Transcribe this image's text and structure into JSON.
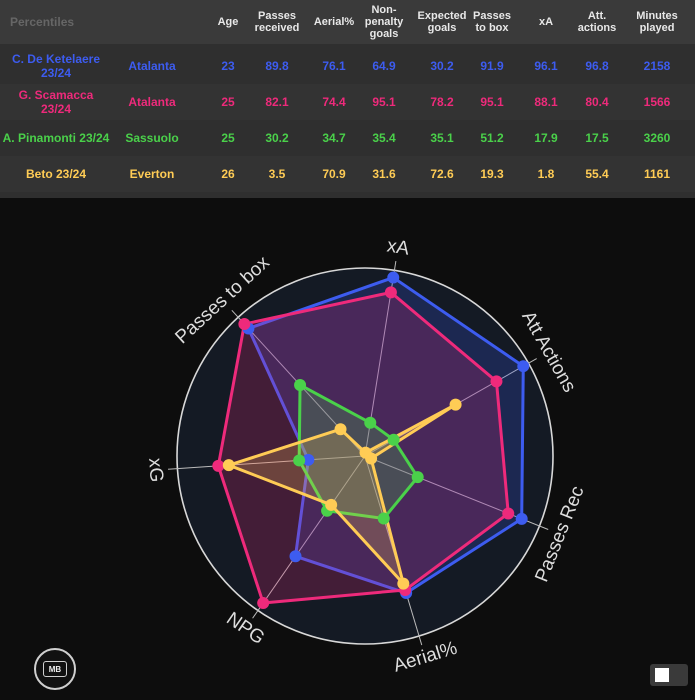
{
  "table": {
    "corner_label": "Percentiles",
    "headers": [
      "Age",
      "Passes received",
      "Aerial%",
      "Non-penalty goals",
      "Expected goals",
      "Passes to box",
      "xA",
      "Att. actions",
      "Minutes played"
    ],
    "rows": [
      {
        "player": "C. De Ketelaere 23/24",
        "team": "Atalanta",
        "color": "#3d5cf0",
        "values": [
          "23",
          "89.8",
          "76.1",
          "64.9",
          "30.2",
          "91.9",
          "96.1",
          "96.8",
          "2158"
        ]
      },
      {
        "player": "G. Scamacca 23/24",
        "team": "Atalanta",
        "color": "#ee2a7b",
        "values": [
          "25",
          "82.1",
          "74.4",
          "95.1",
          "78.2",
          "95.1",
          "88.1",
          "80.4",
          "1566"
        ]
      },
      {
        "player": "A. Pinamonti 23/24",
        "team": "Sassuolo",
        "color": "#4ad14a",
        "values": [
          "25",
          "30.2",
          "34.7",
          "35.4",
          "35.1",
          "51.2",
          "17.9",
          "17.5",
          "3260"
        ]
      },
      {
        "player": "Beto 23/24",
        "team": "Everton",
        "color": "#ffcc55",
        "values": [
          "26",
          "3.5",
          "70.9",
          "31.6",
          "72.6",
          "19.3",
          "1.8",
          "55.4",
          "1161"
        ]
      }
    ]
  },
  "chart_data": {
    "type": "radar",
    "axes": [
      "xA",
      "Att Actions",
      "Passes Rec",
      "Aerial%",
      "NPG",
      "xG",
      "Passes to box"
    ],
    "range": [
      0,
      100
    ],
    "series": [
      {
        "name": "C. De Ketelaere 23/24",
        "color": "#3d5cf0",
        "values": [
          96.1,
          96.8,
          89.8,
          76.1,
          64.9,
          30.2,
          91.9
        ]
      },
      {
        "name": "G. Scamacca 23/24",
        "color": "#ee2a7b",
        "values": [
          88.1,
          80.4,
          82.1,
          74.4,
          95.1,
          78.2,
          95.1
        ]
      },
      {
        "name": "A. Pinamonti 23/24",
        "color": "#4ad14a",
        "values": [
          17.9,
          17.5,
          30.2,
          34.7,
          35.4,
          35.1,
          51.2
        ]
      },
      {
        "name": "Beto 23/24",
        "color": "#ffcc55",
        "values": [
          1.8,
          55.4,
          3.5,
          70.9,
          31.6,
          72.6,
          19.3
        ]
      }
    ],
    "grid": true,
    "legend": "table-above"
  },
  "logo": {
    "text": "MB"
  }
}
